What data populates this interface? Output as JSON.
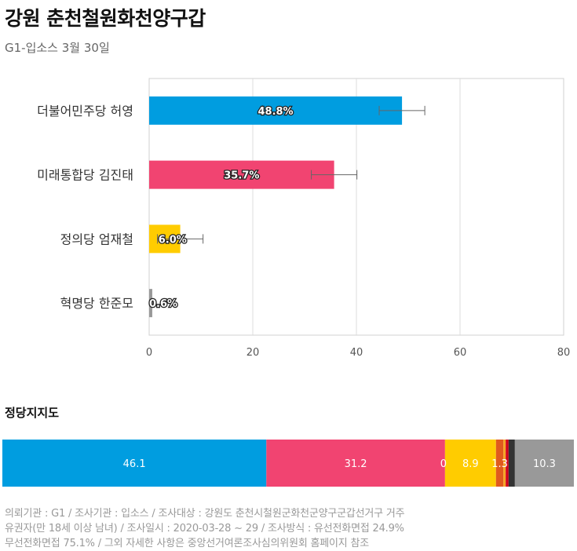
{
  "header": {
    "title": "강원 춘천철원화천양구갑",
    "subtitle": "G1-입소스 3월 30일"
  },
  "chart_data": [
    {
      "type": "bar",
      "orientation": "horizontal",
      "categories": [
        "더불어민주당 허영",
        "미래통합당 김진태",
        "정의당 엄재철",
        "혁명당 한준모"
      ],
      "values": [
        48.8,
        35.7,
        6.0,
        0.6
      ],
      "value_labels": [
        "48.8%",
        "35.7%",
        "6.0%",
        "0.6%"
      ],
      "error_margin": [
        4.4,
        4.4,
        4.4,
        0
      ],
      "colors": [
        "#009de0",
        "#f14471",
        "#ffcc00",
        "#999999"
      ],
      "xlim": [
        0,
        80
      ],
      "xticks": [
        0,
        20,
        40,
        60,
        80
      ],
      "grid": true
    },
    {
      "type": "bar",
      "orientation": "stacked-horizontal",
      "title": "정당지지도",
      "segments": [
        {
          "value": 46.1,
          "label": "46.1",
          "color": "#009de0"
        },
        {
          "value": 31.2,
          "label": "31.2",
          "color": "#f14471"
        },
        {
          "value": 0.0,
          "label": "0",
          "color": "#f14471"
        },
        {
          "value": 8.9,
          "label": "8.9",
          "color": "#ffcc00"
        },
        {
          "value": 1.3,
          "label": "1.3",
          "color": "#e05a1e"
        },
        {
          "value": 0.4,
          "label": "",
          "color": "#f5a623"
        },
        {
          "value": 0.5,
          "label": "",
          "color": "#d0021b"
        },
        {
          "value": 1.1,
          "label": "",
          "color": "#333333"
        },
        {
          "value": 10.3,
          "label": "10.3",
          "color": "#999999"
        }
      ]
    }
  ],
  "footer": {
    "line1": "의뢰기관 : G1 / 조사기관 : 입소스 / 조사대상 : 강원도 춘천시철원군화천군양구군갑선거구 거주",
    "line2": "유권자(만 18세 이상 남녀) / 조사일시 : 2020-03-28 ~ 29 / 조사방식 : 유선전화면접 24.9%",
    "line3": "무선전화면접 75.1% / 그외 자세한 사항은 중앙선거여론조사심의위원회 홈페이지 참조"
  }
}
